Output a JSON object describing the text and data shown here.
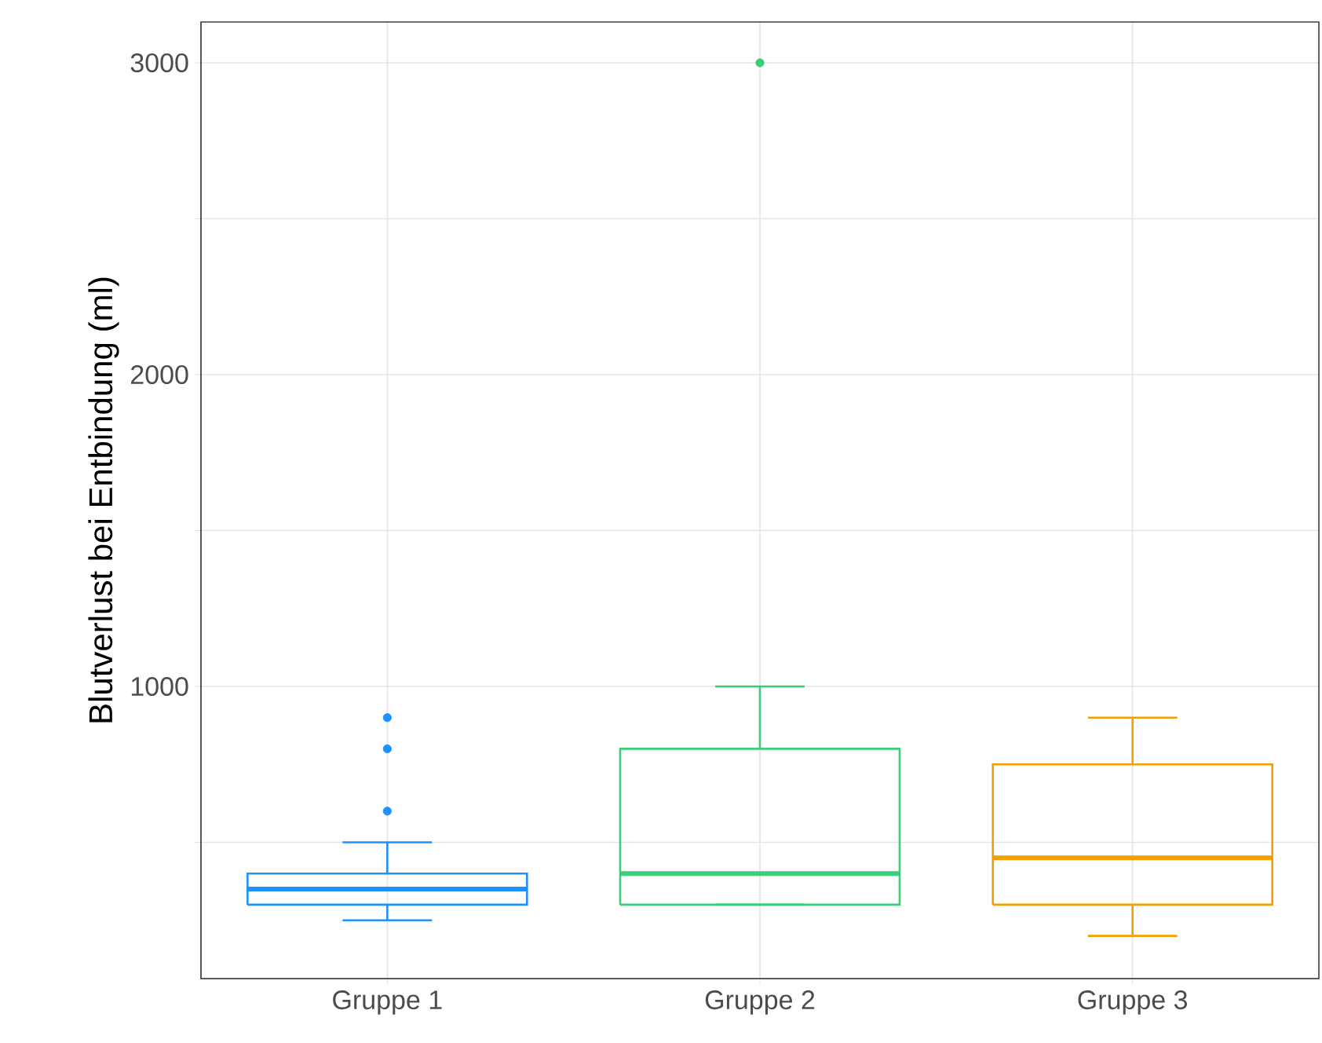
{
  "chart_data": {
    "type": "box",
    "ylabel": "Blutverlust bei Entbindung (ml)",
    "categories": [
      "Gruppe 1",
      "Gruppe 2",
      "Gruppe 3"
    ],
    "colors": [
      "#1e90ff",
      "#3dcc7a",
      "#f0a000"
    ],
    "boxes": [
      {
        "low": 250,
        "q1": 300,
        "median": 350,
        "q3": 400,
        "high": 500,
        "outliers": [
          600,
          800,
          900
        ]
      },
      {
        "low": 300,
        "q1": 300,
        "median": 400,
        "q3": 800,
        "high": 1000,
        "outliers": [
          3000
        ]
      },
      {
        "low": 200,
        "q1": 300,
        "median": 450,
        "q3": 750,
        "high": 900
      }
    ],
    "ylim": [
      63,
      3131
    ],
    "yticks": [
      {
        "value": 500,
        "label": null
      },
      1000,
      {
        "value": 1500,
        "label": null
      },
      2000,
      {
        "value": 2500,
        "label": null
      },
      3000
    ],
    "grid": true
  }
}
